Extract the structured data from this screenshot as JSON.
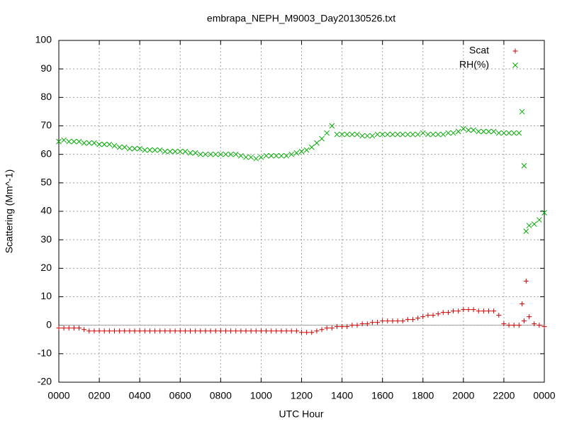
{
  "chart_data": {
    "type": "scatter",
    "title": "embrapa_NEPH_M9003_Day20130526.txt",
    "x_label": "UTC Hour",
    "y_label": "Scattering (Mm^-1)",
    "xlim": [
      0,
      24
    ],
    "ylim": [
      -20,
      100
    ],
    "xticks": [
      {
        "value": 0,
        "label": "0000"
      },
      {
        "value": 2,
        "label": "0200"
      },
      {
        "value": 4,
        "label": "0400"
      },
      {
        "value": 6,
        "label": "0600"
      },
      {
        "value": 8,
        "label": "0800"
      },
      {
        "value": 10,
        "label": "1000"
      },
      {
        "value": 12,
        "label": "1200"
      },
      {
        "value": 14,
        "label": "1400"
      },
      {
        "value": 16,
        "label": "1600"
      },
      {
        "value": 18,
        "label": "1800"
      },
      {
        "value": 20,
        "label": "2000"
      },
      {
        "value": 22,
        "label": "2200"
      },
      {
        "value": 24,
        "label": "0000"
      }
    ],
    "yticks": [
      -20,
      -10,
      0,
      10,
      20,
      30,
      40,
      50,
      60,
      70,
      80,
      90,
      100
    ],
    "grid": true,
    "zero_axis": true,
    "legend": "top-right",
    "x": [
      0,
      0.25,
      0.5,
      0.75,
      1,
      1.25,
      1.5,
      1.75,
      2,
      2.25,
      2.5,
      2.75,
      3,
      3.25,
      3.5,
      3.75,
      4,
      4.25,
      4.5,
      4.75,
      5,
      5.25,
      5.5,
      5.75,
      6,
      6.25,
      6.5,
      6.75,
      7,
      7.25,
      7.5,
      7.75,
      8,
      8.25,
      8.5,
      8.75,
      9,
      9.25,
      9.5,
      9.75,
      10,
      10.25,
      10.5,
      10.75,
      11,
      11.25,
      11.5,
      11.75,
      12,
      12.25,
      12.5,
      12.75,
      13,
      13.25,
      13.5,
      13.75,
      14,
      14.25,
      14.5,
      14.75,
      15,
      15.25,
      15.5,
      15.75,
      16,
      16.25,
      16.5,
      16.75,
      17,
      17.25,
      17.5,
      17.75,
      18,
      18.25,
      18.5,
      18.75,
      19,
      19.25,
      19.5,
      19.75,
      20,
      20.25,
      20.5,
      20.75,
      21,
      21.25,
      21.5,
      21.75,
      22,
      22.25,
      22.5,
      22.75,
      22.9,
      23,
      23.1,
      23.25,
      23.5,
      23.75,
      24
    ],
    "series": [
      {
        "name": "Scat",
        "color": "#cc0000",
        "marker": "plus",
        "values": [
          -1,
          -1,
          -1,
          -1,
          -1,
          -1.5,
          -2,
          -2,
          -2,
          -2,
          -2,
          -2,
          -2,
          -2,
          -2,
          -2,
          -2,
          -2,
          -2,
          -2,
          -2,
          -2,
          -2,
          -2,
          -2,
          -2,
          -2,
          -2,
          -2,
          -2,
          -2,
          -2,
          -2,
          -2,
          -2,
          -2,
          -2,
          -2,
          -2,
          -2,
          -2,
          -2,
          -2,
          -2,
          -2,
          -2,
          -2,
          -2,
          -2.5,
          -2.5,
          -2.5,
          -2,
          -1.5,
          -1,
          -1,
          -0.5,
          -0.5,
          -0.5,
          0,
          0,
          0.5,
          0.5,
          1,
          1,
          1.5,
          1.5,
          1.5,
          1.5,
          1.5,
          2,
          2,
          2.5,
          3,
          3.5,
          3.5,
          4,
          4.5,
          4.5,
          5,
          5,
          5.5,
          5.5,
          5.5,
          5,
          5,
          5,
          5,
          3.5,
          0.5,
          0,
          0,
          0,
          7.5,
          1.5,
          15.5,
          3,
          0.5,
          0,
          -0.5
        ]
      },
      {
        "name": "RH(%)",
        "color": "#00aa00",
        "marker": "cross",
        "values": [
          64.5,
          65,
          64.5,
          64.5,
          64.5,
          64,
          64,
          64,
          63.5,
          63.5,
          63.5,
          63,
          62.5,
          62.5,
          62,
          62,
          62,
          61.5,
          61.5,
          61.5,
          61.5,
          61,
          61,
          61,
          61,
          61,
          60.5,
          60.5,
          60,
          60,
          60,
          60,
          60,
          60,
          60,
          60,
          59.5,
          59,
          59,
          58.5,
          59,
          59.5,
          59.5,
          59.5,
          59.5,
          59.5,
          60,
          60.5,
          61,
          61.5,
          62.5,
          64,
          65.5,
          67.5,
          70,
          67,
          67,
          67,
          67,
          67,
          66.5,
          66.5,
          66.5,
          67,
          67,
          67,
          67,
          67,
          67,
          67,
          67,
          67,
          67.5,
          67,
          67,
          67,
          67,
          67.5,
          67.5,
          68,
          69,
          68.5,
          68.5,
          68,
          68,
          68,
          68,
          67.5,
          67.5,
          67.5,
          67.5,
          67.5,
          75,
          56,
          33,
          35,
          35.5,
          37,
          39.5
        ]
      }
    ]
  }
}
